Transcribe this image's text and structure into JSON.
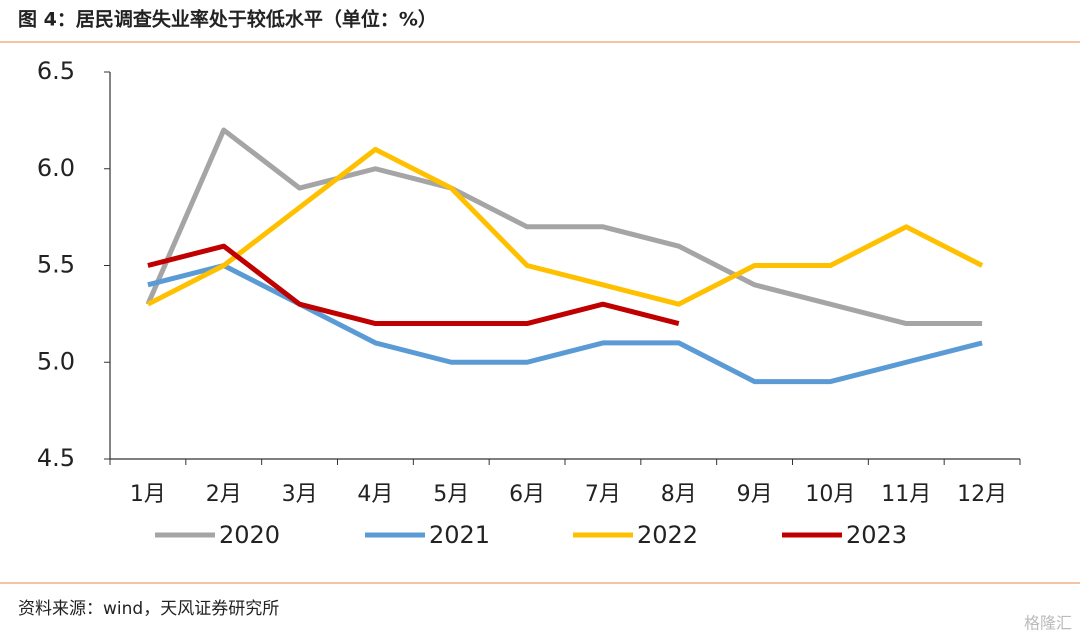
{
  "chart_data": {
    "type": "line",
    "title": "图 4：居民调查失业率处于较低水平（单位：%）",
    "source": "资料来源：wind，天风证券研究所",
    "watermark": "格隆汇",
    "categories": [
      "1月",
      "2月",
      "3月",
      "4月",
      "5月",
      "6月",
      "7月",
      "8月",
      "9月",
      "10月",
      "11月",
      "12月"
    ],
    "series": [
      {
        "name": "2020",
        "color": "#a5a5a5",
        "values": [
          5.3,
          6.2,
          5.9,
          6.0,
          5.9,
          5.7,
          5.7,
          5.6,
          5.4,
          5.3,
          5.2,
          5.2
        ]
      },
      {
        "name": "2021",
        "color": "#5b9bd5",
        "values": [
          5.4,
          5.5,
          5.3,
          5.1,
          5.0,
          5.0,
          5.1,
          5.1,
          4.9,
          4.9,
          5.0,
          5.1
        ]
      },
      {
        "name": "2022",
        "color": "#ffc000",
        "values": [
          5.3,
          5.5,
          5.8,
          6.1,
          5.9,
          5.5,
          5.4,
          5.3,
          5.5,
          5.5,
          5.7,
          5.5
        ]
      },
      {
        "name": "2023",
        "color": "#c00000",
        "values": [
          5.5,
          5.6,
          5.3,
          5.2,
          5.2,
          5.2,
          5.3,
          5.2,
          null,
          null,
          null,
          null
        ]
      }
    ],
    "ylim": [
      4.5,
      6.5
    ],
    "yticks": [
      {
        "value": 4.5,
        "label": "4.5"
      },
      {
        "value": 5,
        "label": "5.0"
      },
      {
        "value": 5.5,
        "label": "5.5"
      },
      {
        "value": 6,
        "label": "6.0"
      },
      {
        "value": 6.5,
        "label": "6.5"
      }
    ],
    "grid": false,
    "legend": "bottom"
  }
}
